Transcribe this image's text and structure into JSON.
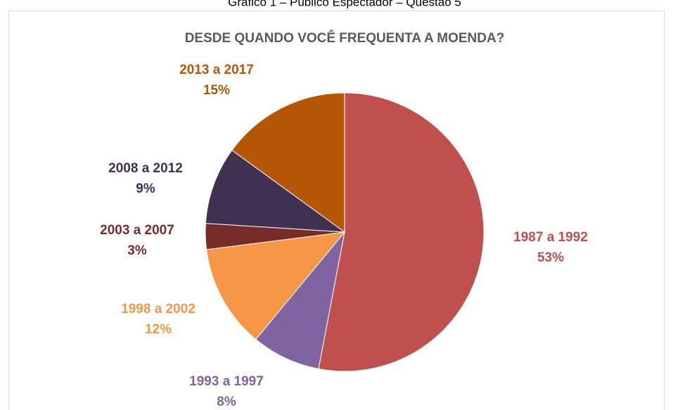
{
  "caption": "Gráfico 1 – Público Espectador – Questão 5",
  "chart_data": {
    "type": "pie",
    "title": "DESDE QUANDO VOCÊ FREQUENTA A MOENDA?",
    "categories": [
      "1987 a 1992",
      "1993 a 1997",
      "1998 a 2002",
      "2003 a 2007",
      "2008 a 2012",
      "2013 a 2017"
    ],
    "values": [
      53,
      8,
      12,
      3,
      9,
      15
    ],
    "value_labels": [
      "53%",
      "8%",
      "12%",
      "3%",
      "9%",
      "15%"
    ],
    "colors": [
      "#c0504d",
      "#8064a2",
      "#f79646",
      "#772c2a",
      "#403152",
      "#b65708"
    ]
  }
}
